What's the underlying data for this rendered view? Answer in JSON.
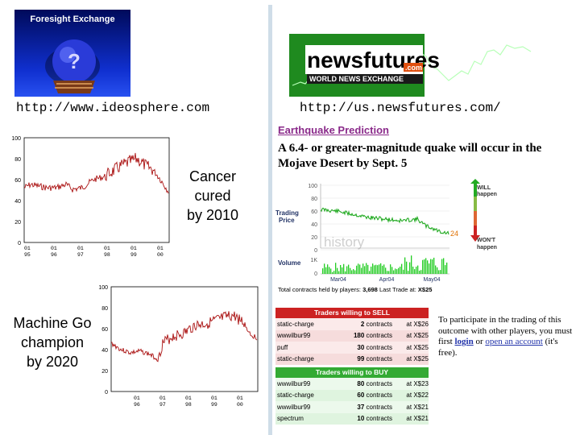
{
  "left": {
    "logo_text": "Foresight Exchange",
    "url": "http://www.ideosphere.com",
    "caption_top": [
      "Cancer",
      "cured",
      "by 2010"
    ],
    "caption_bottom": [
      "Machine Go",
      "champion",
      "by 2020"
    ],
    "chart1": {
      "y_ticks": [
        "100",
        "80",
        "60",
        "40",
        "20",
        "0"
      ],
      "x_ticks": [
        [
          "01",
          "95"
        ],
        [
          "01",
          "96"
        ],
        [
          "01",
          "97"
        ],
        [
          "01",
          "98"
        ],
        [
          "01",
          "99"
        ],
        [
          "01",
          "00"
        ]
      ]
    },
    "chart2": {
      "y_ticks": [
        "100",
        "80",
        "60",
        "40",
        "20",
        "0"
      ],
      "x_ticks": [
        [
          "01",
          "96"
        ],
        [
          "01",
          "97"
        ],
        [
          "01",
          "98"
        ],
        [
          "01",
          "99"
        ],
        [
          "01",
          "00"
        ]
      ]
    }
  },
  "right": {
    "logo_word": "newsfutures",
    "logo_com": ".com",
    "logo_tag": "WORLD NEWS EXCHANGE",
    "url": "http://us.newsfutures.com/",
    "market_title": "Earthquake Prediction",
    "question": "A 6.4- or greater-magnitude quake will occur in the Mojave Desert by Sept. 5",
    "price_label": [
      "Trading",
      "Price"
    ],
    "price_ticks": [
      "100",
      "80",
      "60",
      "40",
      "20",
      "0"
    ],
    "watermark": "history",
    "last_price": "24",
    "will_label": [
      "WILL",
      "happen"
    ],
    "wont_label": [
      "WON'T",
      "happen"
    ],
    "volume_label": "Volume",
    "volume_ticks": [
      "1K",
      "0"
    ],
    "date_ticks": [
      "Mar04",
      "Apr04",
      "May04"
    ],
    "summary_prefix": "Total contracts held by players:",
    "summary_count": "3,698",
    "summary_mid": "Last Trade at:",
    "summary_price": "X$25",
    "sell_header": "Traders willing to SELL",
    "buy_header": "Traders willing to BUY",
    "contracts_word": "contracts",
    "sell_rows": [
      {
        "trader": "static-charge",
        "qty": "2",
        "price": "at X$26"
      },
      {
        "trader": "wwwilbur99",
        "qty": "180",
        "price": "at X$25"
      },
      {
        "trader": "puff",
        "qty": "30",
        "price": "at X$25"
      },
      {
        "trader": "static-charge",
        "qty": "99",
        "price": "at X$25"
      }
    ],
    "buy_rows": [
      {
        "trader": "wwwilbur99",
        "qty": "80",
        "price": "at X$23"
      },
      {
        "trader": "static-charge",
        "qty": "60",
        "price": "at X$22"
      },
      {
        "trader": "wwwilbur99",
        "qty": "37",
        "price": "at X$21"
      },
      {
        "trader": "spectrum",
        "qty": "10",
        "price": "at X$21"
      }
    ],
    "note": {
      "t1": "To participate in the trading of this outcome with other players, you must first ",
      "login": "login",
      "t2": " or ",
      "open_link": "open an account",
      "t3": " (it's free)."
    },
    "colors": {
      "sell_header": "#cc2222",
      "buy_header": "#33aa33",
      "price_line": "#22aa22",
      "volume_bars": "#22cc22"
    }
  }
}
